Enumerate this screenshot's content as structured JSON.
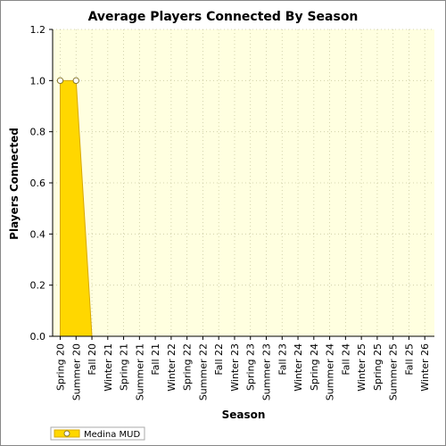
{
  "chart_data": {
    "type": "area",
    "title": "Average Players Connected By Season",
    "xlabel": "Season",
    "ylabel": "Players Connected",
    "ylim": [
      0,
      1.2
    ],
    "yticks": [
      "0.0",
      "0.2",
      "0.4",
      "0.6",
      "0.8",
      "1.0",
      "1.2"
    ],
    "grid": true,
    "legend_position": "bottom-left",
    "colors": {
      "fill": "#FFD700",
      "stroke": "#D8A800",
      "plot_bg": "#FFFFE0",
      "grid": "#C8C8A0"
    },
    "categories": [
      "Spring 20",
      "Summer 20",
      "Fall 20",
      "Winter 21",
      "Spring 21",
      "Summer 21",
      "Fall 21",
      "Winter 22",
      "Spring 22",
      "Summer 22",
      "Fall 22",
      "Winter 23",
      "Spring 23",
      "Summer 23",
      "Fall 23",
      "Winter 24",
      "Spring 24",
      "Summer 24",
      "Fall 24",
      "Winter 25",
      "Spring 25",
      "Summer 25",
      "Fall 25",
      "Winter 26"
    ],
    "series": [
      {
        "name": "Medina MUD",
        "values": [
          1.0,
          1.0,
          null,
          null,
          null,
          null,
          null,
          null,
          null,
          null,
          null,
          null,
          null,
          null,
          null,
          null,
          0.0,
          0.0,
          null,
          null,
          null,
          null,
          0.0,
          0.0
        ]
      }
    ]
  }
}
